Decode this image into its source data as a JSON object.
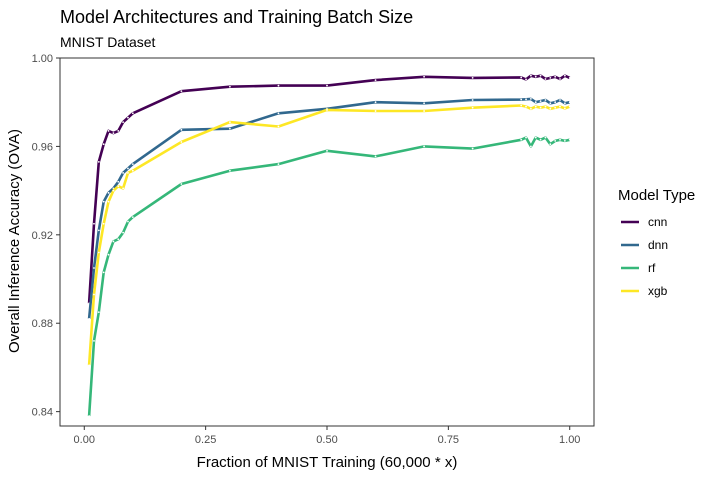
{
  "chart_data": {
    "type": "line",
    "title": "Model Architectures and Training Batch Size",
    "subtitle": "MNIST Dataset",
    "xlabel": "Fraction of MNIST Training (60,000 * x)",
    "ylabel": "Overall Inference Accuracy (OVA)",
    "xlim": [
      -0.05,
      1.05
    ],
    "ylim": [
      0.8335,
      1.0
    ],
    "x_ticks": [
      0,
      0.25,
      0.5,
      0.75,
      1.0
    ],
    "x_tick_labels": [
      "0.00",
      "0.25",
      "0.50",
      "0.75",
      "1.00"
    ],
    "y_ticks": [
      0.84,
      0.88,
      0.92,
      0.96,
      1.0
    ],
    "y_tick_labels": [
      "0.84",
      "0.88",
      "0.92",
      "0.96",
      "1.00"
    ],
    "grid": false,
    "legend": {
      "title": "Model Type",
      "placement": "right"
    },
    "series": [
      {
        "name": "cnn",
        "color": "#440154",
        "points": [
          [
            0.01,
            0.889
          ],
          [
            0.02,
            0.925
          ],
          [
            0.03,
            0.953
          ],
          [
            0.04,
            0.961
          ],
          [
            0.05,
            0.967
          ],
          [
            0.06,
            0.966
          ],
          [
            0.07,
            0.967
          ],
          [
            0.08,
            0.971
          ],
          [
            0.09,
            0.973
          ],
          [
            0.1,
            0.975
          ],
          [
            0.2,
            0.985
          ],
          [
            0.3,
            0.987
          ],
          [
            0.4,
            0.9875
          ],
          [
            0.5,
            0.9875
          ],
          [
            0.6,
            0.99
          ],
          [
            0.7,
            0.9915
          ],
          [
            0.8,
            0.991
          ],
          [
            0.9,
            0.9912
          ],
          [
            0.91,
            0.9903
          ],
          [
            0.92,
            0.992
          ],
          [
            0.93,
            0.9915
          ],
          [
            0.94,
            0.992
          ],
          [
            0.95,
            0.9905
          ],
          [
            0.96,
            0.991
          ],
          [
            0.97,
            0.9915
          ],
          [
            0.98,
            0.9905
          ],
          [
            0.99,
            0.992
          ],
          [
            1.0,
            0.991
          ]
        ]
      },
      {
        "name": "dnn",
        "color": "#31688e",
        "points": [
          [
            0.01,
            0.882
          ],
          [
            0.02,
            0.905
          ],
          [
            0.03,
            0.922
          ],
          [
            0.04,
            0.935
          ],
          [
            0.05,
            0.939
          ],
          [
            0.06,
            0.941
          ],
          [
            0.07,
            0.944
          ],
          [
            0.08,
            0.948
          ],
          [
            0.09,
            0.95
          ],
          [
            0.1,
            0.952
          ],
          [
            0.2,
            0.9675
          ],
          [
            0.3,
            0.968
          ],
          [
            0.4,
            0.975
          ],
          [
            0.5,
            0.977
          ],
          [
            0.6,
            0.98
          ],
          [
            0.7,
            0.9795
          ],
          [
            0.8,
            0.981
          ],
          [
            0.9,
            0.9812
          ],
          [
            0.91,
            0.9813
          ],
          [
            0.92,
            0.9815
          ],
          [
            0.93,
            0.98
          ],
          [
            0.94,
            0.9805
          ],
          [
            0.95,
            0.981
          ],
          [
            0.96,
            0.9795
          ],
          [
            0.97,
            0.98
          ],
          [
            0.98,
            0.981
          ],
          [
            0.99,
            0.9795
          ],
          [
            1.0,
            0.98
          ]
        ]
      },
      {
        "name": "rf",
        "color": "#35b779",
        "points": [
          [
            0.01,
            0.838
          ],
          [
            0.02,
            0.872
          ],
          [
            0.03,
            0.885
          ],
          [
            0.04,
            0.903
          ],
          [
            0.05,
            0.911
          ],
          [
            0.06,
            0.917
          ],
          [
            0.07,
            0.918
          ],
          [
            0.08,
            0.921
          ],
          [
            0.09,
            0.926
          ],
          [
            0.1,
            0.928
          ],
          [
            0.2,
            0.943
          ],
          [
            0.3,
            0.949
          ],
          [
            0.4,
            0.952
          ],
          [
            0.5,
            0.958
          ],
          [
            0.6,
            0.9555
          ],
          [
            0.7,
            0.96
          ],
          [
            0.8,
            0.959
          ],
          [
            0.9,
            0.963
          ],
          [
            0.91,
            0.964
          ],
          [
            0.92,
            0.96
          ],
          [
            0.93,
            0.964
          ],
          [
            0.94,
            0.963
          ],
          [
            0.95,
            0.964
          ],
          [
            0.96,
            0.961
          ],
          [
            0.97,
            0.9625
          ],
          [
            0.98,
            0.963
          ],
          [
            0.99,
            0.9625
          ],
          [
            1.0,
            0.963
          ]
        ]
      },
      {
        "name": "xgb",
        "color": "#fde725",
        "points": [
          [
            0.01,
            0.861
          ],
          [
            0.02,
            0.893
          ],
          [
            0.03,
            0.912
          ],
          [
            0.04,
            0.925
          ],
          [
            0.05,
            0.935
          ],
          [
            0.06,
            0.94
          ],
          [
            0.07,
            0.942
          ],
          [
            0.08,
            0.941
          ],
          [
            0.09,
            0.948
          ],
          [
            0.1,
            0.949
          ],
          [
            0.2,
            0.962
          ],
          [
            0.3,
            0.971
          ],
          [
            0.4,
            0.969
          ],
          [
            0.5,
            0.9765
          ],
          [
            0.6,
            0.976
          ],
          [
            0.7,
            0.976
          ],
          [
            0.8,
            0.9775
          ],
          [
            0.9,
            0.9785
          ],
          [
            0.91,
            0.978
          ],
          [
            0.92,
            0.977
          ],
          [
            0.93,
            0.978
          ],
          [
            0.94,
            0.9775
          ],
          [
            0.95,
            0.978
          ],
          [
            0.96,
            0.977
          ],
          [
            0.97,
            0.9775
          ],
          [
            0.98,
            0.978
          ],
          [
            0.99,
            0.9772
          ],
          [
            1.0,
            0.978
          ]
        ]
      }
    ]
  }
}
